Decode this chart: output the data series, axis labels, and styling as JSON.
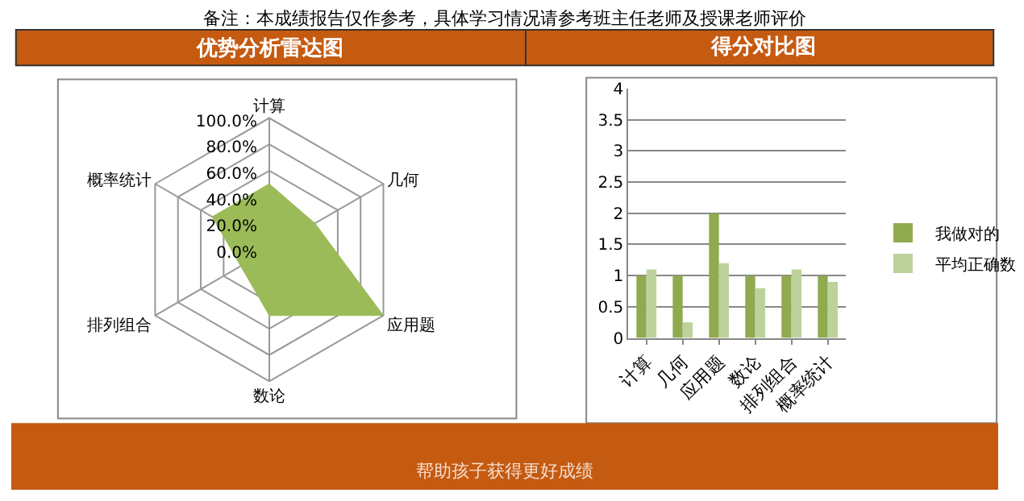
{
  "chart_data": [
    {
      "type": "radar",
      "title": "优势分析雷达图",
      "categories": [
        "计算",
        "几何",
        "应用题",
        "数论",
        "排列组合",
        "概率统计"
      ],
      "series": [
        {
          "color": "#9bbb59",
          "values": [
            50,
            40,
            100,
            50,
            25,
            50
          ]
        }
      ],
      "ylim": [
        0,
        100
      ],
      "yticks": [
        {
          "value": 0,
          "label": "0.0%"
        },
        {
          "value": 20,
          "label": "20.0%"
        },
        {
          "value": 40,
          "label": "40.0%"
        },
        {
          "value": 60,
          "label": "60.0%"
        },
        {
          "value": 80,
          "label": "80.0%"
        },
        {
          "value": 100,
          "label": "100.0%"
        }
      ],
      "grid": true,
      "legend": false,
      "annotations": [
        "备注：本成绩报告仅作参考，具体学习情况请参考班主任老师及授课老师评价",
        "帮助孩子获得更好成绩"
      ]
    },
    {
      "type": "bar",
      "title": "得分对比图",
      "categories": [
        "计算",
        "几何",
        "应用题",
        "数论",
        "排列组合",
        "概率统计"
      ],
      "series": [
        {
          "name": "我做对的",
          "color": "#8faa4f",
          "values": [
            1,
            1,
            2,
            1,
            1,
            1
          ]
        },
        {
          "name": "平均正确数",
          "color": "#bcd29a",
          "values": [
            1.1,
            0.25,
            1.2,
            0.8,
            1.1,
            0.9
          ]
        }
      ],
      "ylim": [
        0,
        4
      ],
      "yticks": [
        0,
        0.5,
        1,
        1.5,
        2,
        2.5,
        3,
        3.5,
        4
      ],
      "grid": "y",
      "legend": "right"
    }
  ]
}
